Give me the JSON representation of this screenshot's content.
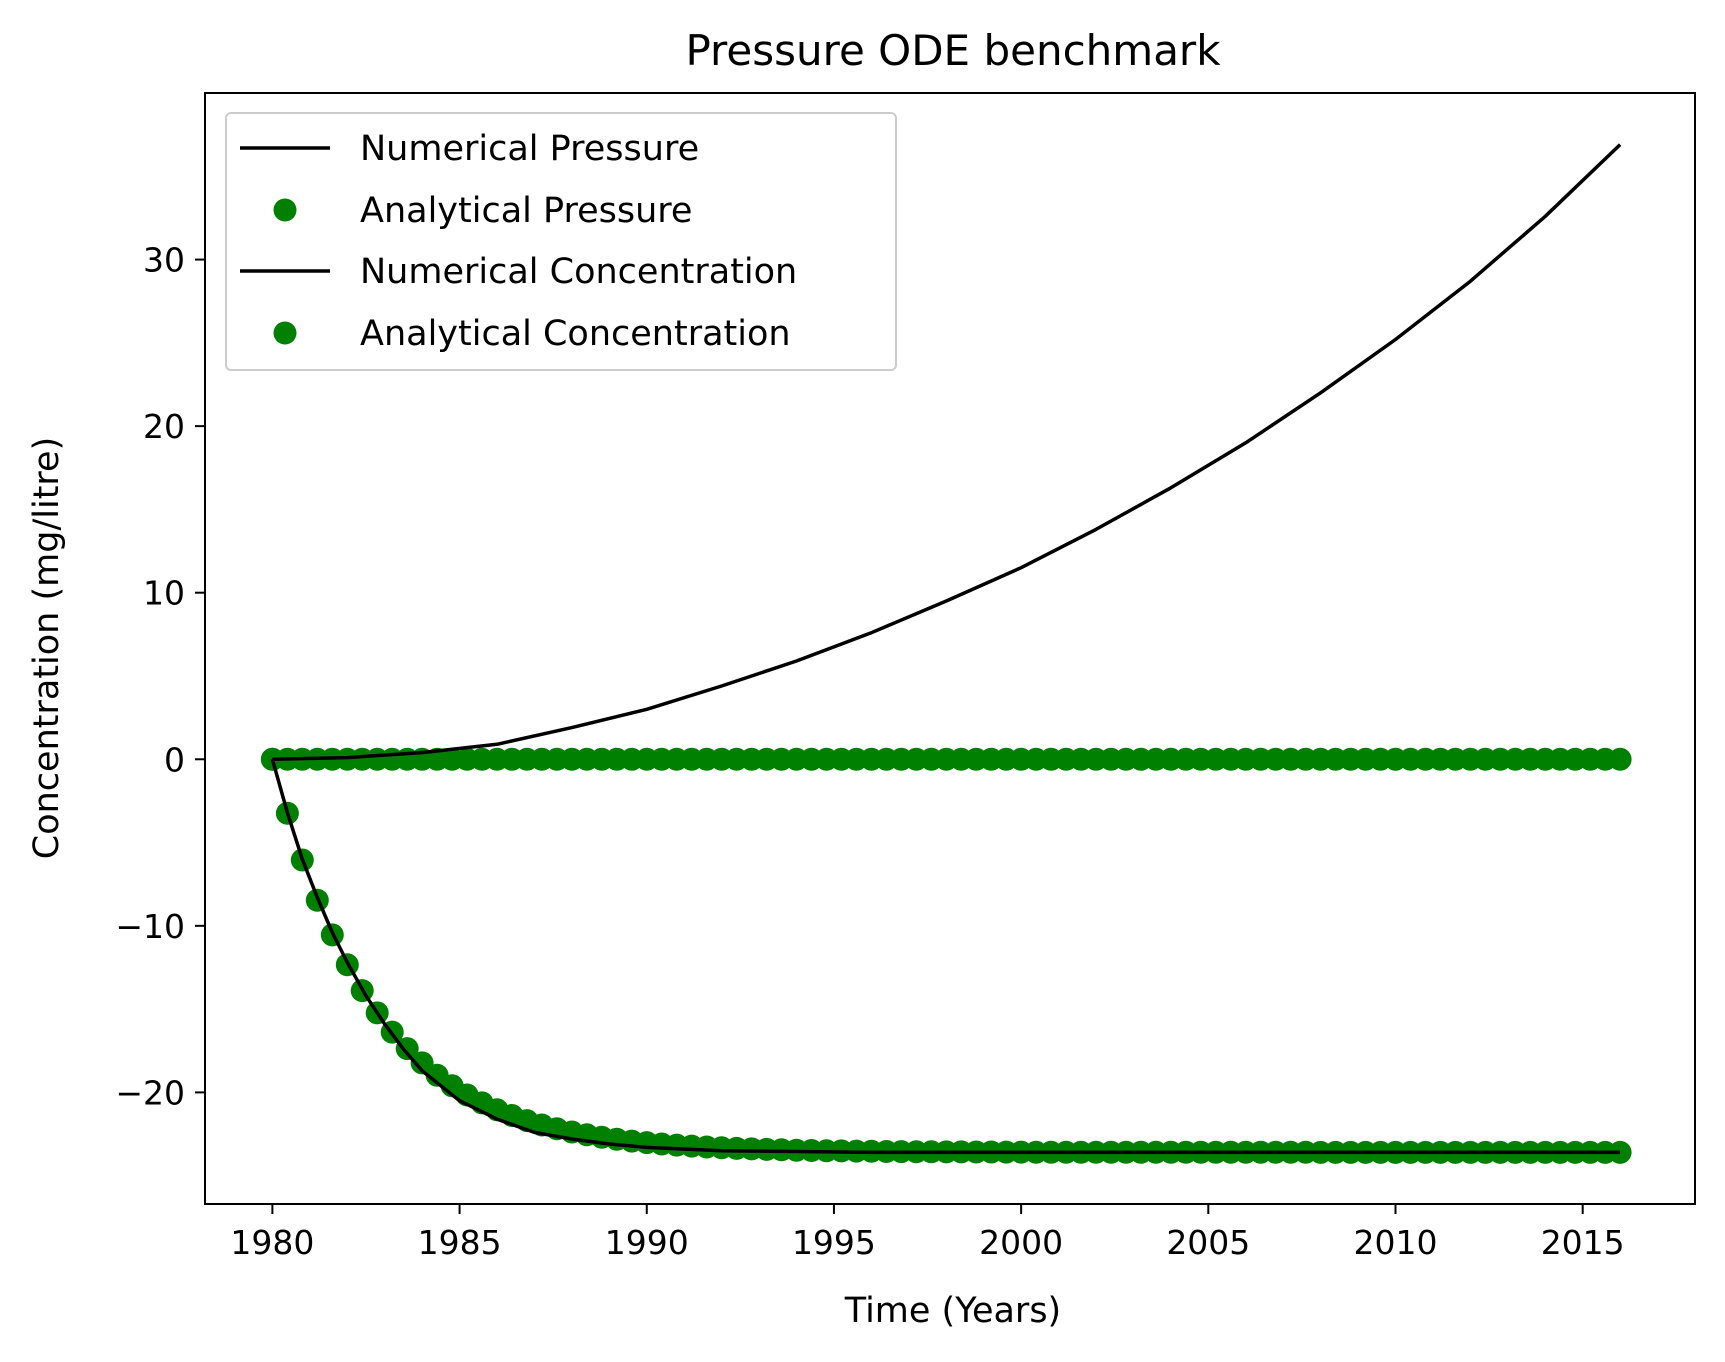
{
  "chart_data": {
    "type": "line",
    "title": "Pressure ODE benchmark",
    "xlabel": "Time (Years)",
    "ylabel": "Concentration (mg/litre)",
    "xlim": [
      1978.2,
      2018.0
    ],
    "ylim": [
      -26.7,
      40.0
    ],
    "x_ticks": [
      1980,
      1985,
      1990,
      1995,
      2000,
      2005,
      2010,
      2015
    ],
    "x_tick_labels": [
      "1980",
      "1985",
      "1990",
      "1995",
      "2000",
      "2005",
      "2010",
      "2015"
    ],
    "y_ticks": [
      -20,
      -10,
      0,
      10,
      20,
      30
    ],
    "y_tick_labels": [
      "−20",
      "−10",
      "0",
      "10",
      "20",
      "30"
    ],
    "grid": false,
    "legend_position": "upper-left",
    "colors": {
      "numerical": "#000000",
      "analytical": "#008000"
    },
    "series": [
      {
        "name": "Numerical Pressure",
        "style": "line",
        "x": [
          1980,
          1982,
          1984,
          1986,
          1988,
          1990,
          1992,
          1994,
          1996,
          1998,
          2000,
          2002,
          2004,
          2006,
          2008,
          2010,
          2012,
          2014,
          2016
        ],
        "y": [
          0.0,
          0.1,
          0.4,
          0.9,
          1.9,
          3.0,
          4.4,
          5.9,
          7.6,
          9.5,
          11.5,
          13.8,
          16.3,
          19.0,
          22.0,
          25.2,
          28.7,
          32.6,
          36.9
        ]
      },
      {
        "name": "Analytical Pressure",
        "style": "markers",
        "x_start": 1980,
        "x_end": 2016,
        "x_step": 0.4,
        "y_constant": 0.0
      },
      {
        "name": "Numerical Concentration",
        "style": "line",
        "x": [
          1980,
          1980.4,
          1980.8,
          1981.2,
          1981.6,
          1982,
          1982.5,
          1983,
          1983.5,
          1984,
          1985,
          1986,
          1987,
          1988,
          1989,
          1990,
          1992,
          1994,
          1996,
          2000,
          2005,
          2010,
          2016
        ],
        "y": [
          0.0,
          -3.2,
          -6.0,
          -8.3,
          -10.4,
          -12.2,
          -14.2,
          -15.9,
          -17.4,
          -18.7,
          -20.5,
          -21.6,
          -22.4,
          -22.8,
          -23.1,
          -23.3,
          -23.5,
          -23.55,
          -23.6,
          -23.6,
          -23.6,
          -23.6,
          -23.6
        ]
      },
      {
        "name": "Analytical Concentration",
        "style": "markers",
        "x_start": 1980,
        "x_end": 2016,
        "x_step": 0.4,
        "y_curve": {
          "asymptote": -23.6,
          "rate_per_year": 0.37
        }
      }
    ]
  }
}
